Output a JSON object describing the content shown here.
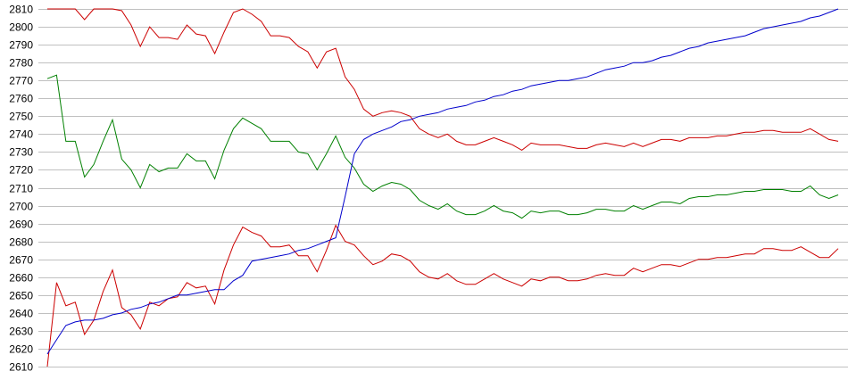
{
  "chart_data": {
    "type": "line",
    "title": "",
    "xlabel": "",
    "ylabel": "",
    "ylim": [
      2610,
      2810
    ],
    "y_ticks": [
      "2610",
      "2620",
      "2630",
      "2640",
      "2650",
      "2660",
      "2670",
      "2680",
      "2690",
      "2700",
      "2710",
      "2720",
      "2730",
      "2740",
      "2750",
      "2760",
      "2770",
      "2780",
      "2790",
      "2800",
      "2810"
    ],
    "grid": "horizontal",
    "legend": "none",
    "series": [
      {
        "color": "#cc0000",
        "values": [
          2810,
          2810,
          2810,
          2810,
          2804,
          2810,
          2810,
          2810,
          2809,
          2801,
          2789,
          2800,
          2794,
          2794,
          2793,
          2801,
          2796,
          2795,
          2785,
          2797,
          2808,
          2810,
          2807,
          2803,
          2795,
          2795,
          2794,
          2789,
          2786,
          2777,
          2786,
          2788,
          2772,
          2765,
          2754,
          2750,
          2752,
          2753,
          2752,
          2750,
          2743,
          2740,
          2738,
          2740,
          2736,
          2734,
          2734,
          2736,
          2738,
          2736,
          2734,
          2731,
          2735,
          2734,
          2734,
          2734,
          2733,
          2732,
          2732,
          2734,
          2735,
          2734,
          2733,
          2735,
          2733,
          2735,
          2737,
          2737,
          2736,
          2738,
          2738,
          2738,
          2739,
          2739,
          2740,
          2741,
          2741,
          2742,
          2742,
          2741,
          2741,
          2741,
          2743,
          2740,
          2737,
          2736
        ]
      },
      {
        "color": "#008000",
        "values": [
          2771,
          2773,
          2736,
          2736,
          2716,
          2723,
          2736,
          2748,
          2726,
          2720,
          2710,
          2723,
          2719,
          2721,
          2721,
          2729,
          2725,
          2725,
          2715,
          2731,
          2743,
          2749,
          2746,
          2743,
          2736,
          2736,
          2736,
          2730,
          2729,
          2720,
          2729,
          2739,
          2727,
          2721,
          2712,
          2708,
          2711,
          2713,
          2712,
          2709,
          2703,
          2700,
          2698,
          2701,
          2697,
          2695,
          2695,
          2697,
          2700,
          2697,
          2696,
          2693,
          2697,
          2696,
          2697,
          2697,
          2695,
          2695,
          2696,
          2698,
          2698,
          2697,
          2697,
          2700,
          2698,
          2700,
          2702,
          2702,
          2701,
          2704,
          2705,
          2705,
          2706,
          2706,
          2707,
          2708,
          2708,
          2709,
          2709,
          2709,
          2708,
          2708,
          2711,
          2706,
          2704,
          2706
        ]
      },
      {
        "color": "#cc0000",
        "values": [
          2610,
          2657,
          2644,
          2646,
          2628,
          2636,
          2652,
          2664,
          2643,
          2639,
          2631,
          2646,
          2644,
          2648,
          2649,
          2657,
          2654,
          2655,
          2645,
          2664,
          2678,
          2688,
          2685,
          2683,
          2677,
          2677,
          2678,
          2672,
          2672,
          2663,
          2675,
          2689,
          2680,
          2678,
          2672,
          2667,
          2669,
          2673,
          2672,
          2669,
          2663,
          2660,
          2659,
          2662,
          2658,
          2656,
          2656,
          2659,
          2662,
          2659,
          2657,
          2655,
          2659,
          2658,
          2660,
          2660,
          2658,
          2658,
          2659,
          2661,
          2662,
          2661,
          2661,
          2665,
          2663,
          2665,
          2667,
          2667,
          2666,
          2668,
          2670,
          2670,
          2671,
          2671,
          2672,
          2673,
          2673,
          2676,
          2676,
          2675,
          2675,
          2677,
          2674,
          2671,
          2671,
          2676
        ]
      },
      {
        "color": "#0000cc",
        "values": [
          2617,
          2625,
          2633,
          2635,
          2636,
          2636,
          2637,
          2639,
          2640,
          2642,
          2643,
          2645,
          2646,
          2648,
          2650,
          2650,
          2651,
          2652,
          2653,
          2653,
          2658,
          2661,
          2669,
          2670,
          2671,
          2672,
          2673,
          2675,
          2676,
          2678,
          2680,
          2682,
          2705,
          2729,
          2737,
          2740,
          2742,
          2744,
          2747,
          2748,
          2750,
          2751,
          2752,
          2754,
          2755,
          2756,
          2758,
          2759,
          2761,
          2762,
          2764,
          2765,
          2767,
          2768,
          2769,
          2770,
          2770,
          2771,
          2772,
          2774,
          2776,
          2777,
          2778,
          2780,
          2780,
          2781,
          2783,
          2784,
          2786,
          2788,
          2789,
          2791,
          2792,
          2793,
          2794,
          2795,
          2797,
          2799,
          2800,
          2801,
          2802,
          2803,
          2805,
          2806,
          2808,
          2810
        ]
      }
    ]
  }
}
